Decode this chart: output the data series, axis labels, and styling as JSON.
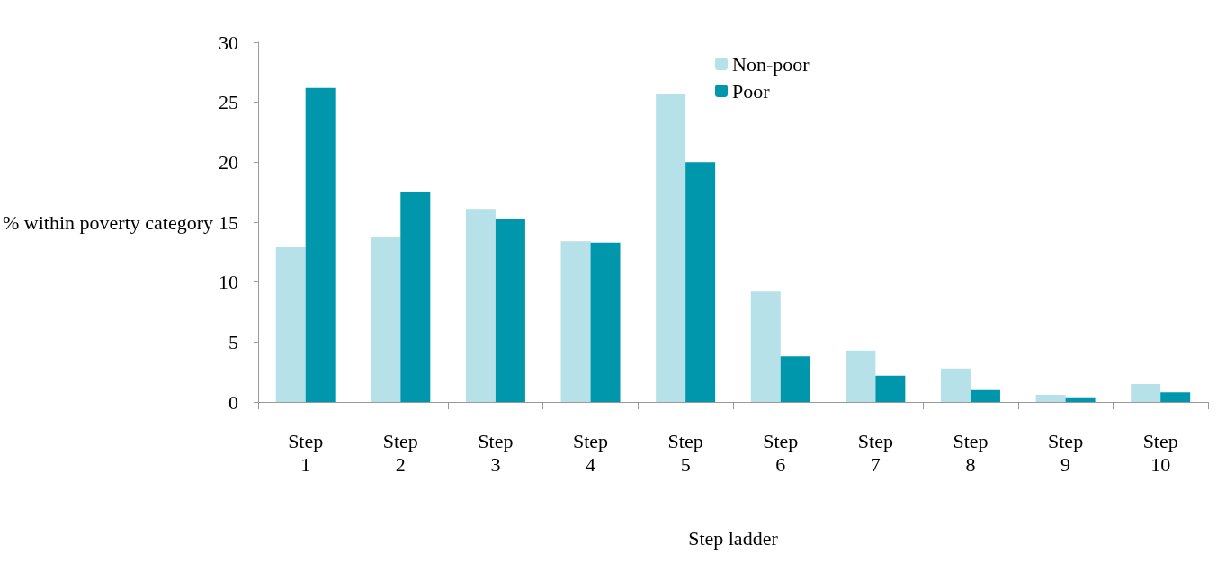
{
  "chart_data": {
    "type": "bar",
    "xlabel": "Step ladder",
    "ylabel": "% within poverty category",
    "categories": [
      "Step 1",
      "Step 2",
      "Step 3",
      "Step 4",
      "Step 5",
      "Step 6",
      "Step 7",
      "Step 8",
      "Step 9",
      "Step 10"
    ],
    "series": [
      {
        "name": "Non-poor",
        "color": "#b7e1e8",
        "values": [
          12.9,
          13.8,
          16.1,
          13.4,
          25.7,
          9.2,
          4.3,
          2.8,
          0.6,
          1.5
        ]
      },
      {
        "name": "Poor",
        "color": "#0097ad",
        "values": [
          26.2,
          17.5,
          15.3,
          13.3,
          20.0,
          3.8,
          2.2,
          1.0,
          0.4,
          0.8
        ]
      }
    ],
    "ylim": [
      0,
      30
    ],
    "yticks": [
      0,
      5,
      10,
      15,
      20,
      25,
      30
    ],
    "grid": false,
    "legend": "top right"
  }
}
